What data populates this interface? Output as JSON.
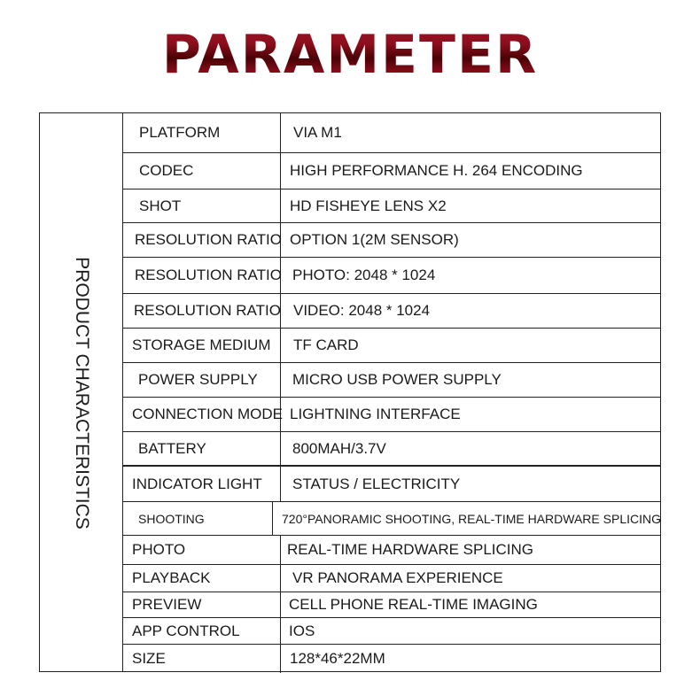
{
  "title": "PARAMETER",
  "side_label": "PRODUCT CHARACTERISTICS",
  "rows": [
    {
      "label": "PLATFORM",
      "value": "VIA M1"
    },
    {
      "label": "CODEC",
      "value": "HIGH PERFORMANCE H. 264 ENCODING"
    },
    {
      "label": "SHOT",
      "value": "HD FISHEYE LENS X2"
    },
    {
      "label": "RESOLUTION RATIO",
      "value": "OPTION 1(2M SENSOR)"
    },
    {
      "label": "RESOLUTION RATIO",
      "value": "PHOTO: 2048 * 1024"
    },
    {
      "label": "RESOLUTION RATIO",
      "value": "VIDEO: 2048 * 1024"
    },
    {
      "label": "STORAGE MEDIUM",
      "value": "TF CARD"
    },
    {
      "label": "POWER SUPPLY",
      "value": "MICRO USB POWER SUPPLY"
    },
    {
      "label": "CONNECTION MODE",
      "value": "LIGHTNING INTERFACE"
    },
    {
      "label": "BATTERY",
      "value": "800MAH/3.7V"
    },
    {
      "label": "INDICATOR LIGHT",
      "value": "STATUS / ELECTRICITY"
    },
    {
      "label": "SHOOTING",
      "value": "720°PANORAMIC SHOOTING, REAL-TIME HARDWARE SPLICING"
    },
    {
      "label": "PHOTO",
      "value": "REAL-TIME HARDWARE SPLICING"
    },
    {
      "label": "PLAYBACK",
      "value": "VR PANORAMA EXPERIENCE"
    },
    {
      "label": "PREVIEW",
      "value": "CELL PHONE REAL-TIME IMAGING"
    },
    {
      "label": "APP CONTROL",
      "value": "IOS"
    },
    {
      "label": "SIZE",
      "value": "128*46*22MM"
    }
  ]
}
